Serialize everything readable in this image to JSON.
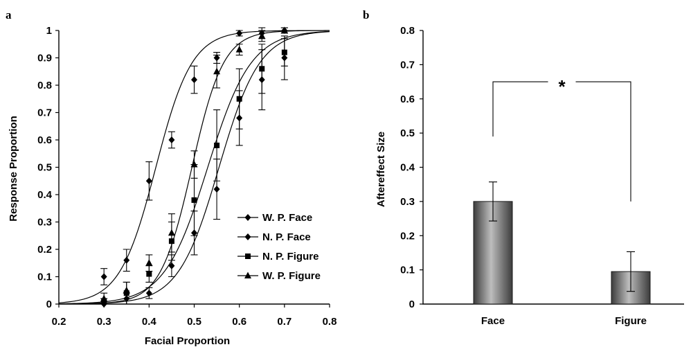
{
  "chart_data": [
    {
      "panel": "a",
      "type": "scatter",
      "xlabel": "Facial Proportion",
      "ylabel": "Response Proportion",
      "xlim": [
        0.2,
        0.8
      ],
      "ylim": [
        0,
        1
      ],
      "xticks": [
        "0.2",
        "0.3",
        "0.4",
        "0.5",
        "0.6",
        "0.7",
        "0.8"
      ],
      "yticks": [
        "0",
        "0.1",
        "0.2",
        "0.3",
        "0.4",
        "0.5",
        "0.6",
        "0.7",
        "0.8",
        "0.9",
        "1"
      ],
      "legend_position": "bottom-right",
      "series": [
        {
          "name": "W. P. Face",
          "marker": "diamond",
          "x": [
            0.3,
            0.35,
            0.4,
            0.45,
            0.5,
            0.55,
            0.6,
            0.65,
            0.7
          ],
          "y": [
            0.1,
            0.16,
            0.45,
            0.6,
            0.82,
            0.9,
            0.99,
            0.99,
            1.0
          ],
          "err": [
            0.03,
            0.04,
            0.07,
            0.03,
            0.05,
            0.02,
            0.01,
            0.02,
            0.01
          ],
          "fit": {
            "mu": 0.415,
            "s": 0.04
          }
        },
        {
          "name": "N. P. Face",
          "marker": "diamond",
          "x": [
            0.3,
            0.35,
            0.4,
            0.45,
            0.5,
            0.55,
            0.6,
            0.65,
            0.7
          ],
          "y": [
            0.0,
            0.02,
            0.04,
            0.14,
            0.26,
            0.42,
            0.68,
            0.82,
            0.9
          ],
          "err": [
            0.01,
            0.02,
            0.02,
            0.04,
            0.08,
            0.11,
            0.1,
            0.11,
            0.08
          ],
          "fit": {
            "mu": 0.555,
            "s": 0.045
          }
        },
        {
          "name": "N. P. Figure",
          "marker": "square",
          "x": [
            0.3,
            0.35,
            0.4,
            0.45,
            0.5,
            0.55,
            0.6,
            0.65,
            0.7
          ],
          "y": [
            0.01,
            0.04,
            0.11,
            0.23,
            0.38,
            0.58,
            0.75,
            0.86,
            0.92
          ],
          "err": [
            0.01,
            0.04,
            0.03,
            0.07,
            0.13,
            0.13,
            0.11,
            0.09,
            0.05
          ],
          "fit": {
            "mu": 0.53,
            "s": 0.048
          }
        },
        {
          "name": "W. P. Figure",
          "marker": "triangle",
          "x": [
            0.3,
            0.35,
            0.4,
            0.45,
            0.5,
            0.55,
            0.6,
            0.65,
            0.7
          ],
          "y": [
            0.02,
            0.05,
            0.15,
            0.26,
            0.51,
            0.85,
            0.93,
            0.98,
            1.0
          ],
          "err": [
            0.02,
            0.03,
            0.03,
            0.07,
            0.05,
            0.06,
            0.02,
            0.02,
            0.01
          ],
          "fit": {
            "mu": 0.495,
            "s": 0.035
          }
        }
      ]
    },
    {
      "panel": "b",
      "type": "bar",
      "categories": [
        "Face",
        "Figure"
      ],
      "values": [
        0.3,
        0.095
      ],
      "errors": [
        0.057,
        0.058
      ],
      "ylabel": "Aftereffect Size",
      "ylim": [
        0,
        0.8
      ],
      "yticks": [
        "0",
        "0.1",
        "0.2",
        "0.3",
        "0.4",
        "0.5",
        "0.6",
        "0.7",
        "0.8"
      ],
      "annotation": "*",
      "bar_color": "#808080"
    }
  ]
}
